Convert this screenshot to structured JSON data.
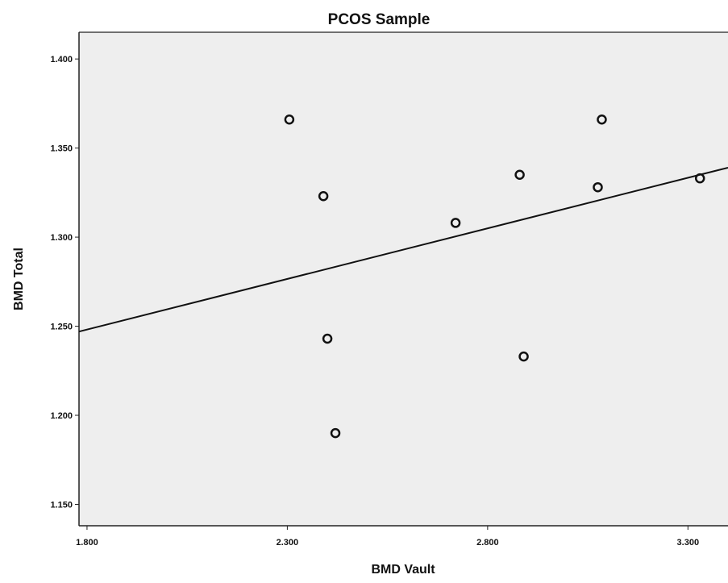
{
  "chart_data": {
    "type": "scatter",
    "title": "PCOS Sample",
    "xlabel": "BMD Vault",
    "ylabel": "BMD Total",
    "xlim": [
      1.78,
      3.4
    ],
    "ylim": [
      1.138,
      1.415
    ],
    "xticks": [
      1.8,
      2.3,
      2.8,
      3.3
    ],
    "xtick_labels": [
      "1.800",
      "2.300",
      "2.800",
      "3.300"
    ],
    "yticks": [
      1.15,
      1.2,
      1.25,
      1.3,
      1.35,
      1.4
    ],
    "ytick_labels": [
      "1.150",
      "1.200",
      "1.250",
      "1.300",
      "1.350",
      "1.400"
    ],
    "grid": false,
    "points": [
      {
        "x": 2.305,
        "y": 1.366
      },
      {
        "x": 2.39,
        "y": 1.323
      },
      {
        "x": 2.4,
        "y": 1.243
      },
      {
        "x": 2.42,
        "y": 1.19
      },
      {
        "x": 2.72,
        "y": 1.308
      },
      {
        "x": 2.88,
        "y": 1.335
      },
      {
        "x": 2.89,
        "y": 1.233
      },
      {
        "x": 3.075,
        "y": 1.328
      },
      {
        "x": 3.085,
        "y": 1.366
      },
      {
        "x": 3.33,
        "y": 1.333
      }
    ],
    "fit_line": {
      "x": [
        1.78,
        3.4
      ],
      "y": [
        1.247,
        1.339
      ]
    }
  }
}
